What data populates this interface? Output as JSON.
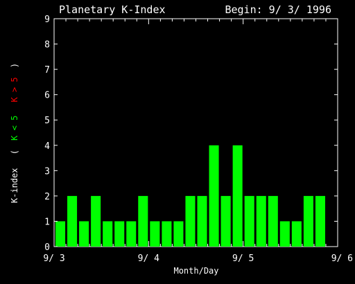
{
  "header": {
    "title": "Planetary K-Index",
    "begin": "Begin: 9/ 3/ 1996"
  },
  "chart_data": {
    "type": "bar",
    "title": "Planetary K-Index",
    "xlabel": "Month/Day",
    "ylabel_parts": {
      "main": "K-index",
      "open": "(",
      "green": "K < 5",
      "red": "K > 5",
      "close": ")"
    },
    "ylim": [
      0,
      9
    ],
    "y_ticks": [
      "0",
      "1",
      "2",
      "3",
      "4",
      "5",
      "6",
      "7",
      "8",
      "9"
    ],
    "x_ticks": [
      "9/ 3",
      "9/ 4",
      "9/ 5",
      "9/ 6"
    ],
    "bins_per_day": 8,
    "values": [
      1,
      2,
      1,
      2,
      1,
      1,
      1,
      2,
      1,
      1,
      1,
      2,
      2,
      4,
      2,
      4,
      2,
      2,
      2,
      1,
      1,
      2,
      2
    ],
    "colors": {
      "background": "#000000",
      "axes": "#ffffff",
      "bar_low": "#00ff00",
      "bar_high": "#ff0000",
      "label_green": "#00ff00",
      "label_red": "#ff0000"
    },
    "threshold": 5
  }
}
